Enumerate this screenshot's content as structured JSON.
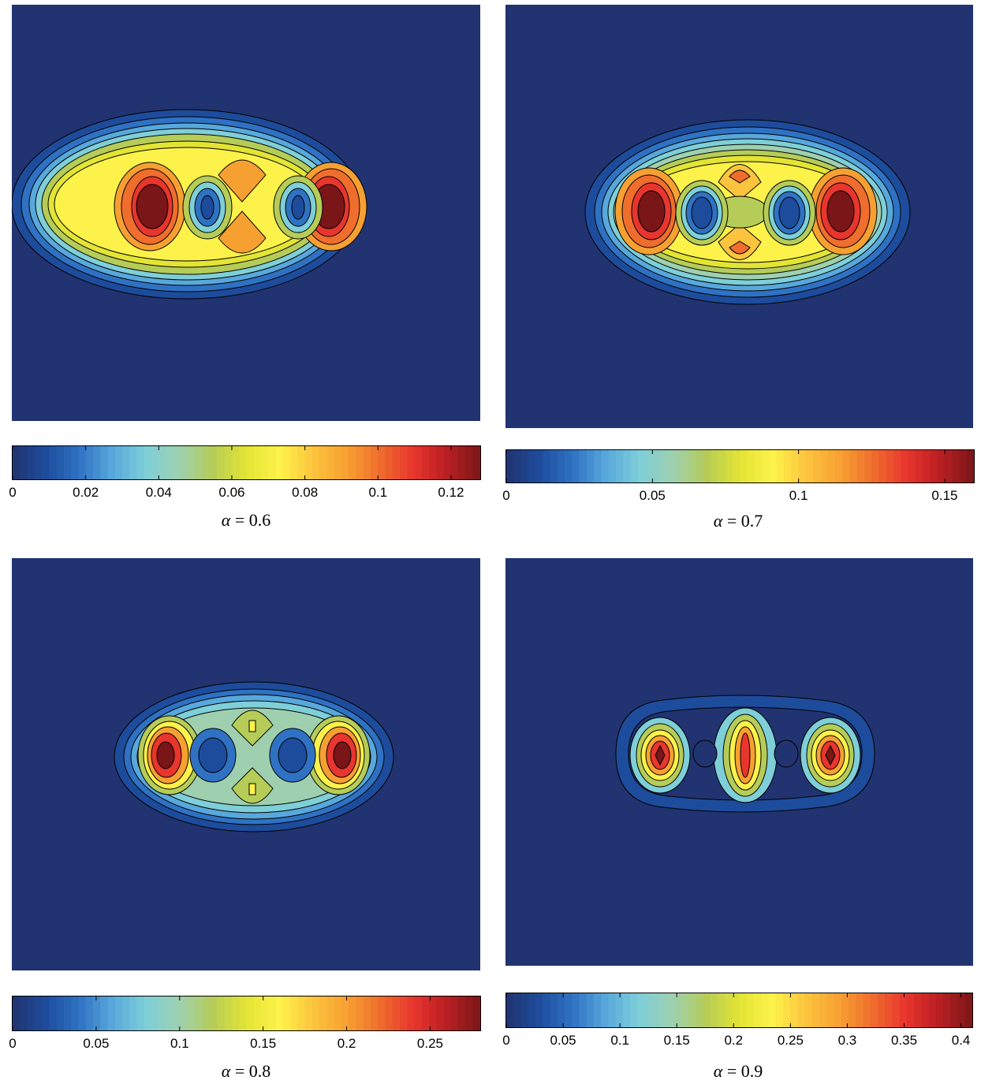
{
  "chart_data": [
    {
      "type": "heatmap",
      "caption_symbol": "α",
      "caption_value": "= 0.6",
      "colorbar_range": [
        0,
        0.128
      ],
      "colorbar_ticks": [
        0,
        0.02,
        0.04,
        0.06,
        0.08,
        0.1,
        0.12
      ],
      "colorbar_tick_labels": [
        "0",
        "0.02",
        "0.04",
        "0.06",
        "0.08",
        "0.1",
        "0.12"
      ]
    },
    {
      "type": "heatmap",
      "caption_symbol": "α",
      "caption_value": "= 0.7",
      "colorbar_range": [
        0,
        0.16
      ],
      "colorbar_ticks": [
        0,
        0.05,
        0.1,
        0.15
      ],
      "colorbar_tick_labels": [
        "0",
        "0.05",
        "0.1",
        "0.15"
      ]
    },
    {
      "type": "heatmap",
      "caption_symbol": "α",
      "caption_value": "= 0.8",
      "colorbar_range": [
        0,
        0.28
      ],
      "colorbar_ticks": [
        0,
        0.05,
        0.1,
        0.15,
        0.2,
        0.25
      ],
      "colorbar_tick_labels": [
        "0",
        "0.05",
        "0.1",
        "0.15",
        "0.2",
        "0.25"
      ]
    },
    {
      "type": "heatmap",
      "caption_symbol": "α",
      "caption_value": "= 0.9",
      "colorbar_range": [
        0,
        0.41
      ],
      "colorbar_ticks": [
        0,
        0.05,
        0.1,
        0.15,
        0.2,
        0.25,
        0.3,
        0.35,
        0.4
      ],
      "colorbar_tick_labels": [
        "0",
        "0.05",
        "0.1",
        "0.15",
        "0.2",
        "0.25",
        "0.3",
        "0.35",
        "0.4"
      ]
    }
  ],
  "colors": {
    "background": "#213370",
    "contour_line": "#000000",
    "colormap": [
      "#213370",
      "#1e4c9c",
      "#2f72c3",
      "#58a8dc",
      "#7ecfd8",
      "#9ed0b0",
      "#b6cc58",
      "#e3e433",
      "#fdf24a",
      "#fcc43e",
      "#f7a032",
      "#ef6d2d",
      "#e8352e",
      "#b91f22",
      "#7a1618"
    ]
  }
}
